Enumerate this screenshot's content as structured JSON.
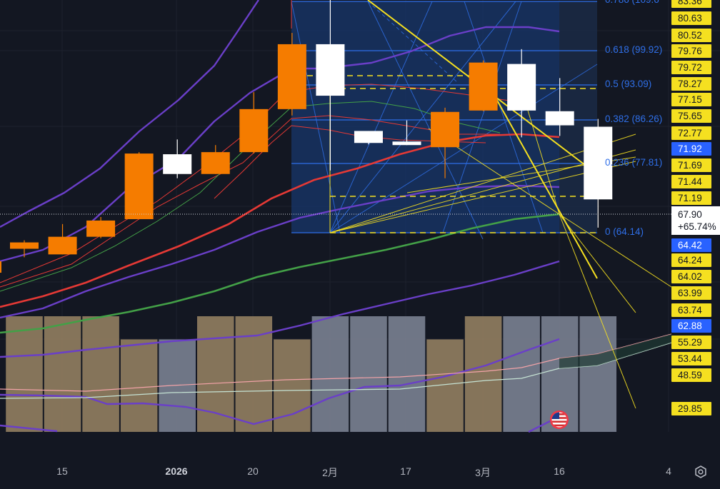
{
  "chart_data": {
    "type": "candlestick",
    "x_tick_labels": [
      "15",
      "2026",
      "20",
      "2月",
      "17",
      "3月",
      "16",
      "4"
    ],
    "candles": [
      {
        "o": 60.9,
        "h": 62.1,
        "l": 59.7,
        "c": 61.8
      },
      {
        "o": 60.1,
        "h": 64.4,
        "l": 60.1,
        "c": 62.6
      },
      {
        "o": 62.6,
        "h": 65.4,
        "l": 62.4,
        "c": 64.9
      },
      {
        "o": 65.1,
        "h": 74.6,
        "l": 65.1,
        "c": 74.4
      },
      {
        "o": 74.3,
        "h": 76.4,
        "l": 70.9,
        "c": 71.5
      },
      {
        "o": 71.5,
        "h": 75.6,
        "l": 71.5,
        "c": 74.6
      },
      {
        "o": 74.6,
        "h": 83.1,
        "l": 74.4,
        "c": 80.7
      },
      {
        "o": 80.7,
        "h": 91.5,
        "l": 79.8,
        "c": 89.9
      },
      {
        "o": 89.9,
        "h": 99.1,
        "l": 72.0,
        "c": 82.6
      },
      {
        "o": 77.6,
        "h": 77.6,
        "l": 75.7,
        "c": 75.9
      },
      {
        "o": 76.1,
        "h": 79.1,
        "l": 75.6,
        "c": 75.6
      },
      {
        "o": 75.3,
        "h": 80.9,
        "l": 70.9,
        "c": 80.3
      },
      {
        "o": 80.5,
        "h": 87.6,
        "l": 80.4,
        "c": 87.3
      },
      {
        "o": 87.1,
        "h": 89.2,
        "l": 76.7,
        "c": 80.5
      },
      {
        "o": 80.4,
        "h": 85.1,
        "l": 76.9,
        "c": 78.4
      },
      {
        "o": 78.2,
        "h": 79.3,
        "l": 63.9,
        "c": 67.9
      }
    ],
    "volume_colors": [
      "#8f7d5f",
      "#8f7d5f",
      "#8f7d5f",
      "#8f7d5f",
      "#777f8f",
      "#8f7d5f",
      "#8f7d5f",
      "#8f7d5f",
      "#777f8f",
      "#777f8f",
      "#777f8f",
      "#8f7d5f",
      "#8f7d5f",
      "#777f8f",
      "#777f8f",
      "#777f8f"
    ],
    "volume_relative": [
      1.0,
      1.0,
      1.0,
      0.8,
      0.8,
      1.0,
      1.0,
      0.8,
      1.0,
      1.0,
      1.0,
      0.8,
      1.0,
      1.0,
      1.0,
      1.0
    ],
    "fib_levels": [
      {
        "ratio": 0.786,
        "label": "0.786 (109.6"
      },
      {
        "ratio": 0.618,
        "label": "0.618 (99.92)"
      },
      {
        "ratio": 0.5,
        "label": "0.5 (93.09)"
      },
      {
        "ratio": 0.382,
        "label": "0.382 (86.26)"
      },
      {
        "ratio": 0.236,
        "label": "0.236 (77.81)"
      },
      {
        "ratio": 0,
        "label": "0 (64.14)"
      }
    ],
    "right_axis_tags": [
      {
        "text": "83.36",
        "style": "yellow"
      },
      {
        "text": "80.63",
        "style": "yellow"
      },
      {
        "text": "80.52",
        "style": "yellow"
      },
      {
        "text": "79.76",
        "style": "yellow"
      },
      {
        "text": "79.72",
        "style": "yellow"
      },
      {
        "text": "78.27",
        "style": "yellow"
      },
      {
        "text": "77.15",
        "style": "yellow"
      },
      {
        "text": "75.65",
        "style": "yellow"
      },
      {
        "text": "72.77",
        "style": "yellow"
      },
      {
        "text": "71.92",
        "style": "blue"
      },
      {
        "text": "71.69",
        "style": "yellow"
      },
      {
        "text": "71.44",
        "style": "yellow"
      },
      {
        "text": "71.19",
        "style": "yellow"
      },
      {
        "text": "64.42",
        "style": "blue"
      },
      {
        "text": "64.24",
        "style": "yellow"
      },
      {
        "text": "64.02",
        "style": "yellow"
      },
      {
        "text": "63.99",
        "style": "yellow"
      },
      {
        "text": "63.74",
        "style": "yellow"
      },
      {
        "text": "62.88",
        "style": "blue"
      },
      {
        "text": "55.29",
        "style": "yellow"
      },
      {
        "text": "53.44",
        "style": "yellow"
      },
      {
        "text": "48.59",
        "style": "yellow"
      },
      {
        "text": "29.85",
        "style": "yellow"
      }
    ],
    "current_price": "67.90",
    "current_change": "+65.74%",
    "colors": {
      "background": "#131722",
      "bull": "#f57c00",
      "bear": "#ffffff",
      "fib": "#2f6fe8",
      "trend": "#f5e020",
      "ma_red": "#e53935",
      "ma_green": "#43a047",
      "ma_purple": "#6a3fc8"
    }
  },
  "icons": {
    "settings": "gear-icon",
    "event": "us-flag-icon"
  }
}
